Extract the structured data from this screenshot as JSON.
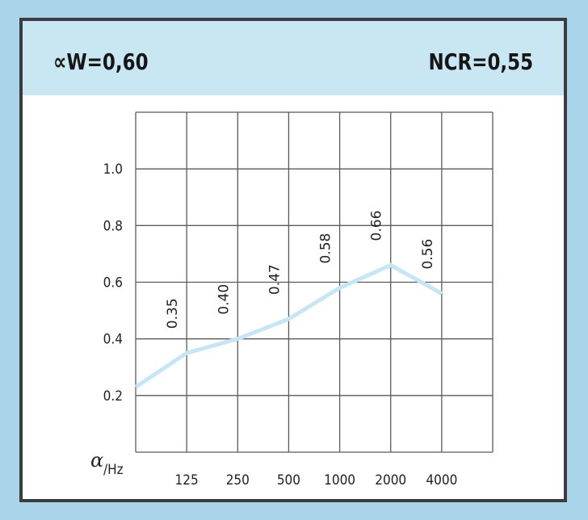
{
  "header": {
    "rating_w": "∝W=0,60",
    "rating_ncr": "NCR=0,55"
  },
  "colors": {
    "background": "#a9d4ea",
    "header_band": "#c9e7f3",
    "frame": "#3c3c40",
    "grid": "#5a5a5a",
    "line": "#c6e6f6"
  },
  "chart_data": {
    "type": "line",
    "categories": [
      "125",
      "250",
      "500",
      "1000",
      "2000",
      "4000"
    ],
    "series": [
      {
        "values": [
          0.35,
          0.4,
          0.47,
          0.58,
          0.66,
          0.56
        ]
      }
    ],
    "data_labels": [
      "0.35",
      "0.40",
      "0.47",
      "0.58",
      "0.66",
      "0.56"
    ],
    "y_ticks": [
      "0.2",
      "0.4",
      "0.6",
      "0.8",
      "1.0"
    ],
    "ylabel_symbol": "α",
    "ylabel_unit": "/Hz",
    "ylim": [
      0.0,
      1.2
    ],
    "grid": true
  }
}
